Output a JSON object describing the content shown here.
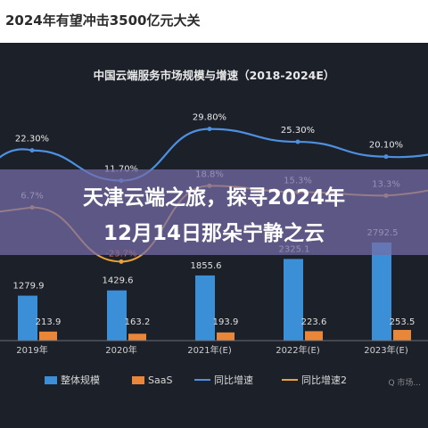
{
  "header": {
    "top_title": "2024年有望冲击3500亿元大关"
  },
  "banner": {
    "line1": "天津云端之旅，探寻2024年",
    "line2": "12月14日那朵宁静之云"
  },
  "watermark": "Q 市场...",
  "colors": {
    "background": "#1c2029",
    "bar_total": "#3a8fd6",
    "bar_saas": "#e8873a",
    "line_growth": "#4d8fe0",
    "line_growth2": "#e8a23a",
    "banner": "#766ca8"
  },
  "chart_data": {
    "type": "bar",
    "title": "中国云端服务市场规模与增速（2018-2024E）",
    "categories": [
      "2019年",
      "2020年",
      "2021年(E)",
      "2022年(E)",
      "2023年(E)"
    ],
    "series": [
      {
        "name": "整体规模",
        "kind": "bar",
        "values": [
          1279.9,
          1429.6,
          1855.6,
          2325.1,
          2792.5
        ]
      },
      {
        "name": "SaaS",
        "kind": "bar",
        "values": [
          213.9,
          163.2,
          193.9,
          223.6,
          253.5
        ]
      },
      {
        "name": "同比增速",
        "kind": "line",
        "values": [
          22.3,
          11.7,
          29.8,
          25.3,
          20.1
        ],
        "unit": "%"
      },
      {
        "name": "同比增速2",
        "kind": "line",
        "values": [
          6.7,
          -23.7,
          18.8,
          15.3,
          13.3
        ],
        "unit": "%"
      }
    ],
    "labels": {
      "total": [
        "1279.9",
        "1429.6",
        "1855.6",
        "2325.1",
        "2792.5"
      ],
      "saas": [
        "213.9",
        "163.2",
        "193.9",
        "223.6",
        "253.5"
      ],
      "growth": [
        "22.30%",
        "11.70%",
        "29.80%",
        "25.30%",
        "20.10%"
      ],
      "growth2": [
        "6.7%",
        "-23.7%",
        "18.8%",
        "15.3%",
        "13.3%"
      ]
    },
    "legend_position": "bottom",
    "grid": false
  }
}
